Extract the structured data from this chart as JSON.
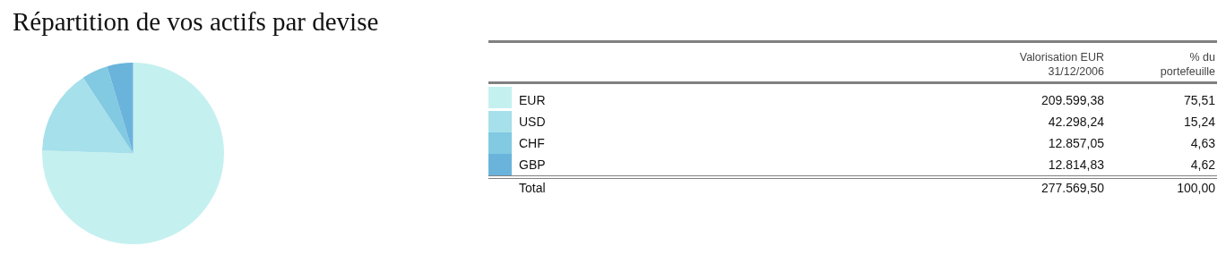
{
  "chart_data": {
    "type": "pie",
    "title": "Répartition de vos actifs par devise",
    "categories": [
      "EUR",
      "USD",
      "CHF",
      "GBP"
    ],
    "values": [
      209599.38,
      42298.24,
      12857.05,
      12814.83
    ],
    "value_labels": [
      "209.599,38",
      "42.298,24",
      "12.857,05",
      "12.814,83"
    ],
    "colors": [
      "#c5f0f0",
      "#a6e0ea",
      "#82c9e2",
      "#6ab4dc"
    ],
    "legend": "right",
    "annotations": [
      "Valorisation EUR\n31/12/2006",
      "% du\nportefeuille",
      "75,51",
      "15,24",
      "4,63",
      "4,62",
      "Total",
      "277.569,50",
      "100,00"
    ]
  }
}
